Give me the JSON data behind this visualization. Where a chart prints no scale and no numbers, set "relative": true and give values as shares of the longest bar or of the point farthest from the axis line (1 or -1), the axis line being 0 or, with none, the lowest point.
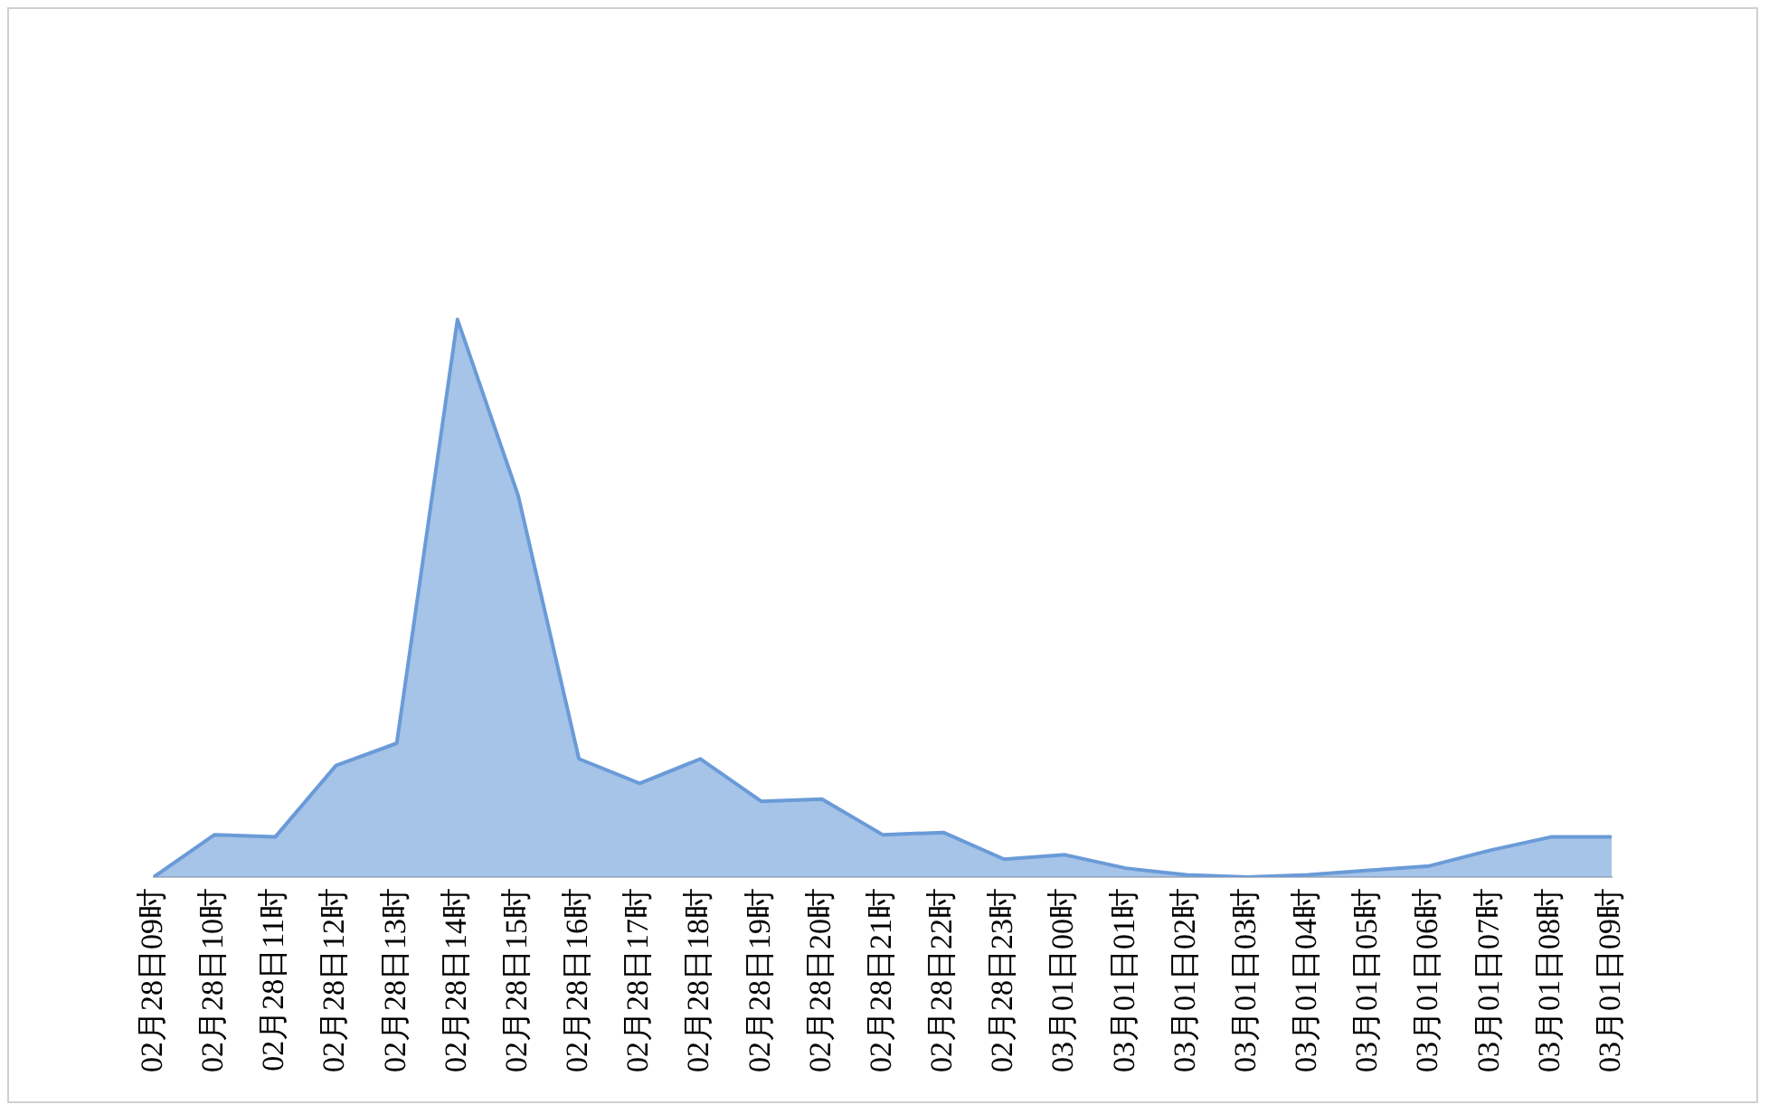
{
  "chart_data": {
    "type": "area",
    "relative": true,
    "legend": false,
    "grid": false,
    "marker": "none",
    "categories": [
      "02月28日09时",
      "02月28日10时",
      "02月28日11时",
      "02月28日12时",
      "02月28日13时",
      "02月28日14时",
      "02月28日15时",
      "02月28日16时",
      "02月28日17时",
      "02月28日18时",
      "02月28日19时",
      "02月28日20时",
      "02月28日21时",
      "02月28日22时",
      "02月28日23时",
      "03月01日00时",
      "03月01日01时",
      "03月01日02时",
      "03月01日03时",
      "03月01日04时",
      "03月01日05时",
      "03月01日06时",
      "03月01日07时",
      "03月01日08时",
      "03月01日09时"
    ],
    "series": [
      {
        "color": "#6a9bd8",
        "values": [
          0,
          0.076,
          0.072,
          0.2,
          0.24,
          1,
          0.684,
          0.212,
          0.168,
          0.212,
          0.136,
          0.14,
          0.076,
          0.08,
          0.032,
          0.04,
          0.016,
          0.004,
          0,
          0.004,
          0.012,
          0.02,
          0.048,
          0.072,
          0.072
        ]
      }
    ]
  }
}
